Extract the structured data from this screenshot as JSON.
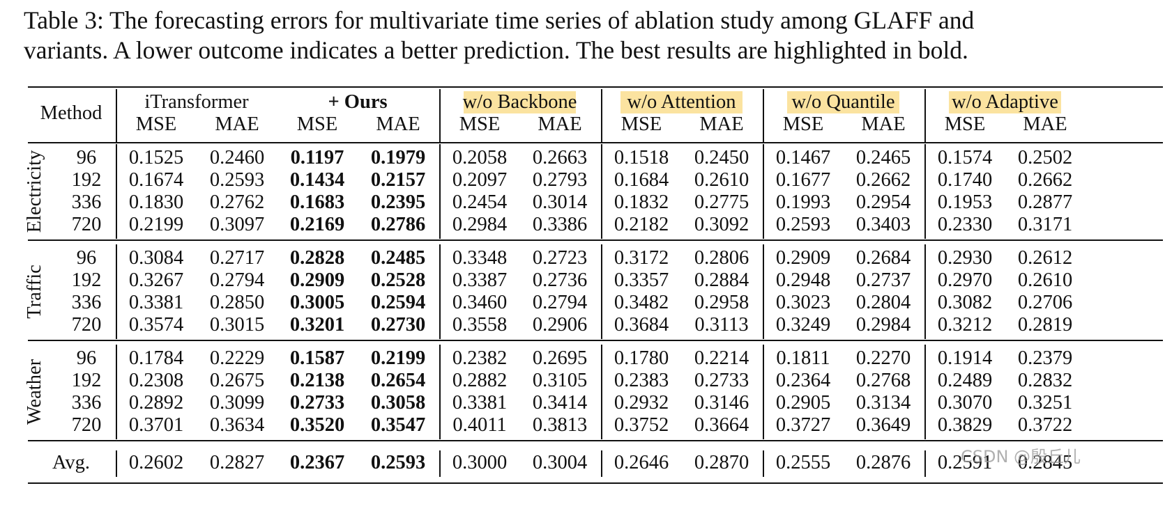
{
  "caption": {
    "line1": "Table 3: The forecasting errors for multivariate time series of ablation study among GLAFF and",
    "line2": "variants. A lower outcome indicates a better prediction. The best results are highlighted in bold."
  },
  "table": {
    "method_label": "Method",
    "groups": [
      {
        "name": "iTransformer",
        "bold": false,
        "highlight": false
      },
      {
        "name": "+ Ours",
        "bold": true,
        "highlight": false
      },
      {
        "name": "w/o Backbone",
        "bold": false,
        "highlight": true
      },
      {
        "name": "w/o Attention",
        "bold": false,
        "highlight": true
      },
      {
        "name": "w/o Quantile",
        "bold": false,
        "highlight": true
      },
      {
        "name": "w/o Adaptive",
        "bold": false,
        "highlight": true
      }
    ],
    "metric_labels": [
      "MSE",
      "MAE"
    ],
    "highlight_color": "#fbe3a0",
    "datasets": [
      {
        "name": "Electricity",
        "rows": [
          {
            "horizon": "96",
            "values": [
              "0.1525",
              "0.2460",
              "0.1197",
              "0.1979",
              "0.2058",
              "0.2663",
              "0.1518",
              "0.2450",
              "0.1467",
              "0.2465",
              "0.1574",
              "0.2502"
            ]
          },
          {
            "horizon": "192",
            "values": [
              "0.1674",
              "0.2593",
              "0.1434",
              "0.2157",
              "0.2097",
              "0.2793",
              "0.1684",
              "0.2610",
              "0.1677",
              "0.2662",
              "0.1740",
              "0.2662"
            ]
          },
          {
            "horizon": "336",
            "values": [
              "0.1830",
              "0.2762",
              "0.1683",
              "0.2395",
              "0.2454",
              "0.3014",
              "0.1832",
              "0.2775",
              "0.1993",
              "0.2954",
              "0.1953",
              "0.2877"
            ]
          },
          {
            "horizon": "720",
            "values": [
              "0.2199",
              "0.3097",
              "0.2169",
              "0.2786",
              "0.2984",
              "0.3386",
              "0.2182",
              "0.3092",
              "0.2593",
              "0.3403",
              "0.2330",
              "0.3171"
            ]
          }
        ]
      },
      {
        "name": "Traffic",
        "rows": [
          {
            "horizon": "96",
            "values": [
              "0.3084",
              "0.2717",
              "0.2828",
              "0.2485",
              "0.3348",
              "0.2723",
              "0.3172",
              "0.2806",
              "0.2909",
              "0.2684",
              "0.2930",
              "0.2612"
            ]
          },
          {
            "horizon": "192",
            "values": [
              "0.3267",
              "0.2794",
              "0.2909",
              "0.2528",
              "0.3387",
              "0.2736",
              "0.3357",
              "0.2884",
              "0.2948",
              "0.2737",
              "0.2970",
              "0.2610"
            ]
          },
          {
            "horizon": "336",
            "values": [
              "0.3381",
              "0.2850",
              "0.3005",
              "0.2594",
              "0.3460",
              "0.2794",
              "0.3482",
              "0.2958",
              "0.3023",
              "0.2804",
              "0.3082",
              "0.2706"
            ]
          },
          {
            "horizon": "720",
            "values": [
              "0.3574",
              "0.3015",
              "0.3201",
              "0.2730",
              "0.3558",
              "0.2906",
              "0.3684",
              "0.3113",
              "0.3249",
              "0.2984",
              "0.3212",
              "0.2819"
            ]
          }
        ]
      },
      {
        "name": "Weather",
        "rows": [
          {
            "horizon": "96",
            "values": [
              "0.1784",
              "0.2229",
              "0.1587",
              "0.2199",
              "0.2382",
              "0.2695",
              "0.1780",
              "0.2214",
              "0.1811",
              "0.2270",
              "0.1914",
              "0.2379"
            ]
          },
          {
            "horizon": "192",
            "values": [
              "0.2308",
              "0.2675",
              "0.2138",
              "0.2654",
              "0.2882",
              "0.3105",
              "0.2383",
              "0.2733",
              "0.2364",
              "0.2768",
              "0.2489",
              "0.2832"
            ]
          },
          {
            "horizon": "336",
            "values": [
              "0.2892",
              "0.3099",
              "0.2733",
              "0.3058",
              "0.3381",
              "0.3414",
              "0.2932",
              "0.3146",
              "0.2905",
              "0.3134",
              "0.3070",
              "0.3251"
            ]
          },
          {
            "horizon": "720",
            "values": [
              "0.3701",
              "0.3634",
              "0.3520",
              "0.3547",
              "0.4011",
              "0.3813",
              "0.3752",
              "0.3664",
              "0.3727",
              "0.3649",
              "0.3829",
              "0.3722"
            ]
          }
        ]
      }
    ],
    "average": {
      "label": "Avg.",
      "values": [
        "0.2602",
        "0.2827",
        "0.2367",
        "0.2593",
        "0.3000",
        "0.3004",
        "0.2646",
        "0.2870",
        "0.2555",
        "0.2876",
        "0.2591",
        "0.2845"
      ]
    },
    "bold_group_index": 1
  },
  "watermark": "CSDN @殷丘儿"
}
